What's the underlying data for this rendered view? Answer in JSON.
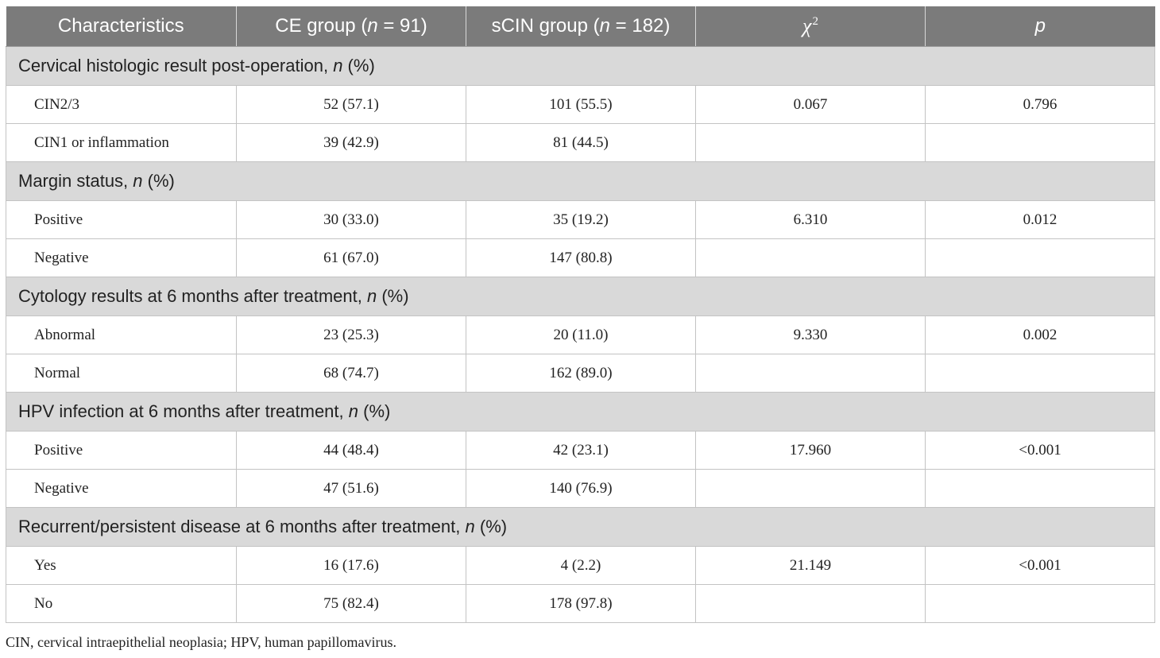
{
  "header": {
    "characteristics": "Characteristics",
    "ce_group_prefix": "CE group (",
    "ce_group_n": "n",
    "ce_group_suffix": " = 91)",
    "scin_group_prefix": "sCIN group (",
    "scin_group_n": "n",
    "scin_group_suffix": " = 182)",
    "chi_symbol": "χ",
    "chi_superscript": "2",
    "p_label": "p"
  },
  "sections": [
    {
      "title": "Cervical histologic result post-operation, ",
      "title_italic": "n",
      "title_suffix": " (%)",
      "rows": [
        {
          "label": "CIN2/3",
          "ce": "52 (57.1)",
          "scin": "101 (55.5)",
          "chi2": "0.067",
          "p": "0.796"
        },
        {
          "label": "CIN1 or inflammation",
          "ce": "39 (42.9)",
          "scin": "81 (44.5)",
          "chi2": "",
          "p": ""
        }
      ]
    },
    {
      "title": "Margin status, ",
      "title_italic": "n",
      "title_suffix": " (%)",
      "rows": [
        {
          "label": "Positive",
          "ce": "30 (33.0)",
          "scin": "35 (19.2)",
          "chi2": "6.310",
          "p": "0.012"
        },
        {
          "label": "Negative",
          "ce": "61 (67.0)",
          "scin": "147 (80.8)",
          "chi2": "",
          "p": ""
        }
      ]
    },
    {
      "title": "Cytology results at 6 months after treatment, ",
      "title_italic": "n",
      "title_suffix": " (%)",
      "rows": [
        {
          "label": "Abnormal",
          "ce": "23 (25.3)",
          "scin": "20 (11.0)",
          "chi2": "9.330",
          "p": "0.002"
        },
        {
          "label": "Normal",
          "ce": "68 (74.7)",
          "scin": "162 (89.0)",
          "chi2": "",
          "p": ""
        }
      ]
    },
    {
      "title": "HPV infection at 6 months after treatment, ",
      "title_italic": "n",
      "title_suffix": " (%)",
      "rows": [
        {
          "label": "Positive",
          "ce": "44 (48.4)",
          "scin": "42 (23.1)",
          "chi2": "17.960",
          "p": "<0.001"
        },
        {
          "label": "Negative",
          "ce": "47 (51.6)",
          "scin": "140 (76.9)",
          "chi2": "",
          "p": ""
        }
      ]
    },
    {
      "title": "Recurrent/persistent disease at 6 months after treatment, ",
      "title_italic": "n",
      "title_suffix": " (%)",
      "rows": [
        {
          "label": "Yes",
          "ce": "16 (17.6)",
          "scin": "4 (2.2)",
          "chi2": "21.149",
          "p": "<0.001"
        },
        {
          "label": "No",
          "ce": "75 (82.4)",
          "scin": "178 (97.8)",
          "chi2": "",
          "p": ""
        }
      ]
    }
  ],
  "footnote": "CIN, cervical intraepithelial neoplasia; HPV, human papillomavirus.",
  "colors": {
    "header_bg": "#7b7b7b",
    "section_bg": "#d9d9d9",
    "border": "#c3c3c3"
  }
}
